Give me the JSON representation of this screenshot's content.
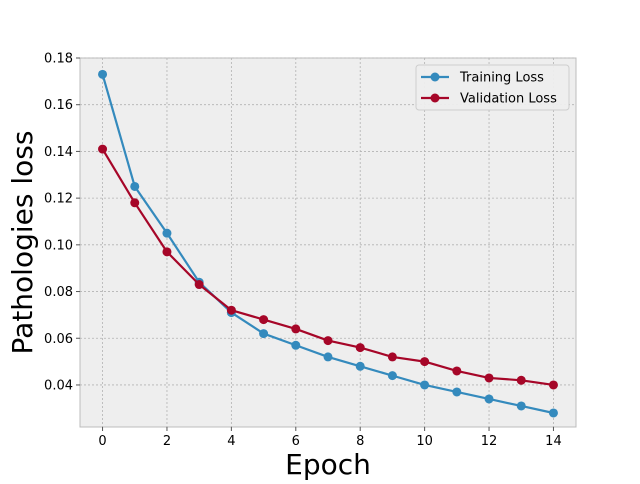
{
  "chart_data": {
    "type": "line",
    "title": "",
    "xlabel": "Epoch",
    "ylabel": "Pathologies loss",
    "xlim": [
      -0.7,
      14.7
    ],
    "ylim": [
      0.022,
      0.18
    ],
    "xticks": [
      0,
      2,
      4,
      6,
      8,
      10,
      12,
      14
    ],
    "yticks": [
      0.04,
      0.06,
      0.08,
      0.1,
      0.12,
      0.14,
      0.16,
      0.18
    ],
    "ytick_labels": [
      "0.04",
      "0.06",
      "0.08",
      "0.10",
      "0.12",
      "0.14",
      "0.16",
      "0.18"
    ],
    "grid": true,
    "legend_position": "top-right",
    "x": [
      0,
      1,
      2,
      3,
      4,
      5,
      6,
      7,
      8,
      9,
      10,
      11,
      12,
      13,
      14
    ],
    "series": [
      {
        "name": "Training Loss",
        "color": "#348ABD",
        "values": [
          0.173,
          0.125,
          0.105,
          0.084,
          0.071,
          0.062,
          0.057,
          0.052,
          0.048,
          0.044,
          0.04,
          0.037,
          0.034,
          0.031,
          0.028
        ]
      },
      {
        "name": "Validation Loss",
        "color": "#A60628",
        "values": [
          0.141,
          0.118,
          0.097,
          0.083,
          0.072,
          0.068,
          0.064,
          0.059,
          0.056,
          0.052,
          0.05,
          0.046,
          0.043,
          0.042,
          0.04
        ]
      }
    ],
    "colors": {
      "plot_background": "#EEEEEE",
      "grid": "#B2B2B2",
      "axes_edge": "#BCBCBC"
    }
  }
}
